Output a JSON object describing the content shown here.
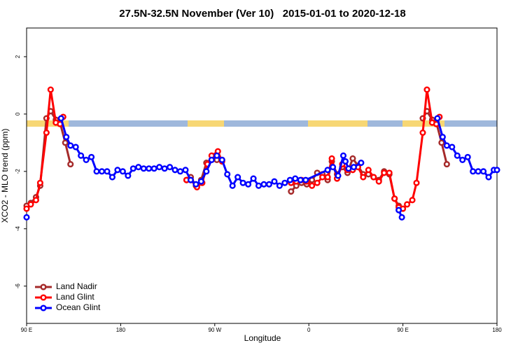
{
  "chart_data": {
    "type": "line",
    "title": "27.5N-32.5N November (Ver 10)   2015-01-01 to 2020-12-18",
    "xlabel": "Longitude",
    "ylabel": "XCO2 - MLO trend (ppm)",
    "xlim": [
      90,
      540
    ],
    "ylim": [
      -7.3,
      3
    ],
    "xticks": [
      {
        "value": 90,
        "label": "90 E"
      },
      180,
      {
        "value": 270,
        "label": "90 W"
      },
      {
        "value": 360,
        "label": "0"
      },
      {
        "value": 450,
        "label": "90 E"
      },
      {
        "value": 540,
        "label": "180"
      }
    ],
    "yticks": [
      2,
      0,
      -2,
      -4,
      -6
    ],
    "legend": "bottom-left",
    "series": [
      {
        "name": "Land Nadir",
        "color": "#a52a2a",
        "x": [
          90,
          94,
          99,
          103,
          109,
          113,
          118,
          122,
          127,
          132,
          137,
          243,
          247,
          252,
          257,
          262,
          267,
          272,
          277,
          282,
          343,
          348,
          353,
          358,
          363,
          368,
          373,
          378,
          382,
          387,
          392,
          397,
          402,
          407,
          412,
          417,
          422,
          427,
          432,
          437,
          442,
          446,
          448,
          469,
          473,
          478,
          482,
          487,
          492
        ],
        "values": [
          -3.2,
          -3.1,
          -2.9,
          -2.5,
          -0.15,
          0.1,
          -0.2,
          -0.3,
          -1.0,
          -1.75,
          null,
          -2.3,
          -2.2,
          -2.5,
          -2.3,
          -1.7,
          -1.6,
          -1.6,
          -1.6,
          null,
          -2.7,
          -2.5,
          -2.4,
          -2.45,
          -2.3,
          -2.05,
          -2.1,
          -2.3,
          -1.65,
          -2.1,
          -1.85,
          -2.05,
          -1.55,
          -1.8,
          -2.1,
          -2.1,
          -2.2,
          -2.3,
          -2.0,
          -2.1,
          -2.95,
          -3.2,
          null,
          -0.15,
          0.1,
          -0.2,
          -0.3,
          -1.0,
          -1.75
        ]
      },
      {
        "name": "Land Glint",
        "color": "#ff0000",
        "x": [
          90,
          94,
          99,
          103,
          109,
          113,
          118,
          122,
          125,
          130,
          243,
          247,
          253,
          258,
          263,
          267,
          273,
          277,
          282,
          343,
          348,
          353,
          358,
          363,
          368,
          373,
          378,
          382,
          387,
          392,
          397,
          402,
          407,
          412,
          417,
          422,
          427,
          432,
          437,
          442,
          446,
          450,
          454,
          459,
          463,
          469,
          473,
          478,
          482,
          485
        ],
        "values": [
          -3.3,
          -3.15,
          -3.0,
          -2.4,
          -0.65,
          0.85,
          -0.3,
          -0.35,
          -0.1,
          null,
          -2.3,
          -2.3,
          -2.55,
          -2.4,
          -1.75,
          -1.45,
          -1.3,
          -1.65,
          null,
          -2.4,
          -2.35,
          -2.3,
          -2.35,
          -2.5,
          -2.4,
          -2.2,
          -2.2,
          -1.55,
          -2.25,
          -1.75,
          -1.95,
          -1.95,
          -1.85,
          -2.2,
          -1.95,
          -2.2,
          -2.35,
          -2.05,
          -2.05,
          -2.95,
          -3.25,
          -3.3,
          -3.15,
          -3.0,
          -2.4,
          -0.65,
          0.85,
          -0.3,
          -0.35,
          -0.1
        ]
      },
      {
        "name": "Ocean Glint",
        "color": "#0000ff",
        "x": [
          90,
          100,
          123,
          128,
          132,
          137,
          142,
          147,
          152,
          157,
          162,
          167,
          172,
          177,
          182,
          187,
          192,
          197,
          202,
          207,
          212,
          217,
          222,
          227,
          232,
          237,
          242,
          247,
          252,
          257,
          262,
          267,
          272,
          277,
          282,
          287,
          292,
          297,
          302,
          307,
          312,
          317,
          322,
          327,
          332,
          337,
          342,
          347,
          352,
          357,
          378,
          383,
          388,
          393,
          395,
          398,
          403,
          410,
          415,
          446,
          449,
          455,
          483,
          488,
          492,
          497,
          502,
          507,
          512,
          517,
          522,
          527,
          532,
          537,
          540
        ],
        "values": [
          -3.6,
          null,
          -0.15,
          -0.8,
          -1.1,
          -1.15,
          -1.45,
          -1.6,
          -1.5,
          -2.0,
          -2.0,
          -2.0,
          -2.2,
          -1.95,
          -2.0,
          -2.15,
          -1.9,
          -1.85,
          -1.9,
          -1.9,
          -1.9,
          -1.85,
          -1.9,
          -1.85,
          -1.95,
          -2.0,
          -1.95,
          -2.3,
          -2.45,
          -2.35,
          -2.0,
          -1.6,
          -1.45,
          -1.6,
          -2.1,
          -2.5,
          -2.2,
          -2.4,
          -2.45,
          -2.25,
          -2.5,
          -2.45,
          -2.45,
          -2.35,
          -2.5,
          -2.4,
          -2.3,
          -2.25,
          -2.3,
          -2.3,
          -1.95,
          -1.85,
          -2.15,
          -1.45,
          -1.65,
          -1.9,
          -1.85,
          -1.7,
          null,
          -3.35,
          -3.6,
          null,
          -0.15,
          -0.8,
          -1.1,
          -1.15,
          -1.45,
          -1.6,
          -1.5,
          -2.0,
          -2.0,
          -2.0,
          -2.2,
          -1.95,
          -1.95
        ]
      }
    ]
  }
}
